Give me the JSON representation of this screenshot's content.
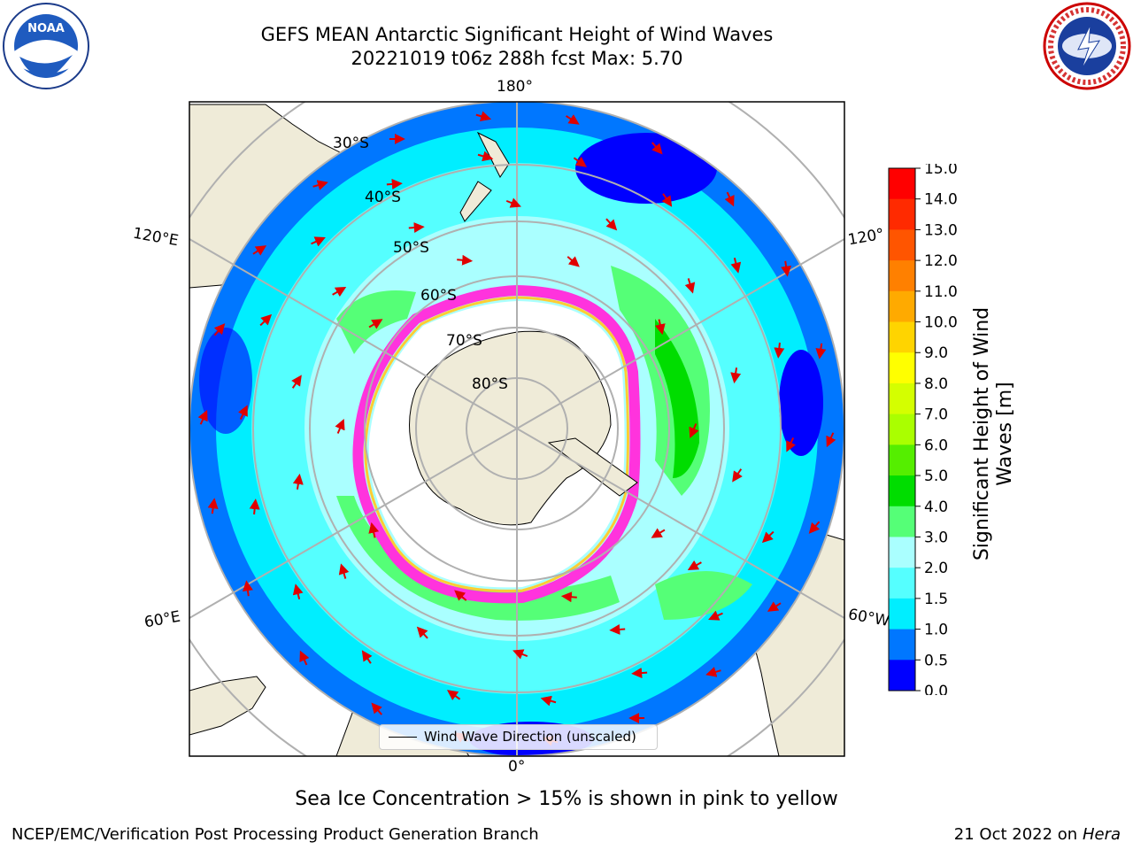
{
  "title": {
    "line1": "GEFS MEAN Antarctic Significant Height of Wind Waves",
    "line2": "20221019 t06z 288h fcst   Max: 5.70"
  },
  "map": {
    "lon_labels": {
      "top": "180°",
      "bottom": "0°",
      "upper_left": "120°E",
      "lower_left": "60°E",
      "upper_right": "120°",
      "lower_right": "60°W"
    },
    "lat_labels": [
      "30°S",
      "40°S",
      "50°S",
      "60°S",
      "70°S",
      "80°S"
    ],
    "legend_label": "Wind Wave Direction (unscaled)"
  },
  "colorbar": {
    "label": "Significant Height of Wind Waves [m]",
    "ticks": [
      "15.0",
      "14.0",
      "13.0",
      "12.0",
      "11.0",
      "10.0",
      "9.0",
      "8.0",
      "7.0",
      "6.0",
      "5.0",
      "4.0",
      "3.0",
      "2.0",
      "1.5",
      "1.0",
      "0.5",
      "0.0"
    ],
    "colors": [
      "#ff0000",
      "#ff2a00",
      "#ff5500",
      "#ff8000",
      "#ffaa00",
      "#ffd400",
      "#ffff00",
      "#d4ff00",
      "#aaff00",
      "#55ee00",
      "#00dd00",
      "#55ff77",
      "#aaffff",
      "#55ffff",
      "#00eeff",
      "#0077ff",
      "#0000ff"
    ]
  },
  "caption": "Sea Ice Concentration > 15% is shown in pink to yellow",
  "footer": {
    "left": "NCEP/EMC/Verification Post Processing Product Generation Branch",
    "right_date": "21 Oct 2022 on ",
    "right_host": "Hera"
  },
  "logos": {
    "left": "NOAA",
    "right": "NATIONAL WEATHER SERVICE"
  },
  "icons": [
    "noaa-logo-icon",
    "nws-logo-icon",
    "wind-arrow-icon"
  ]
}
